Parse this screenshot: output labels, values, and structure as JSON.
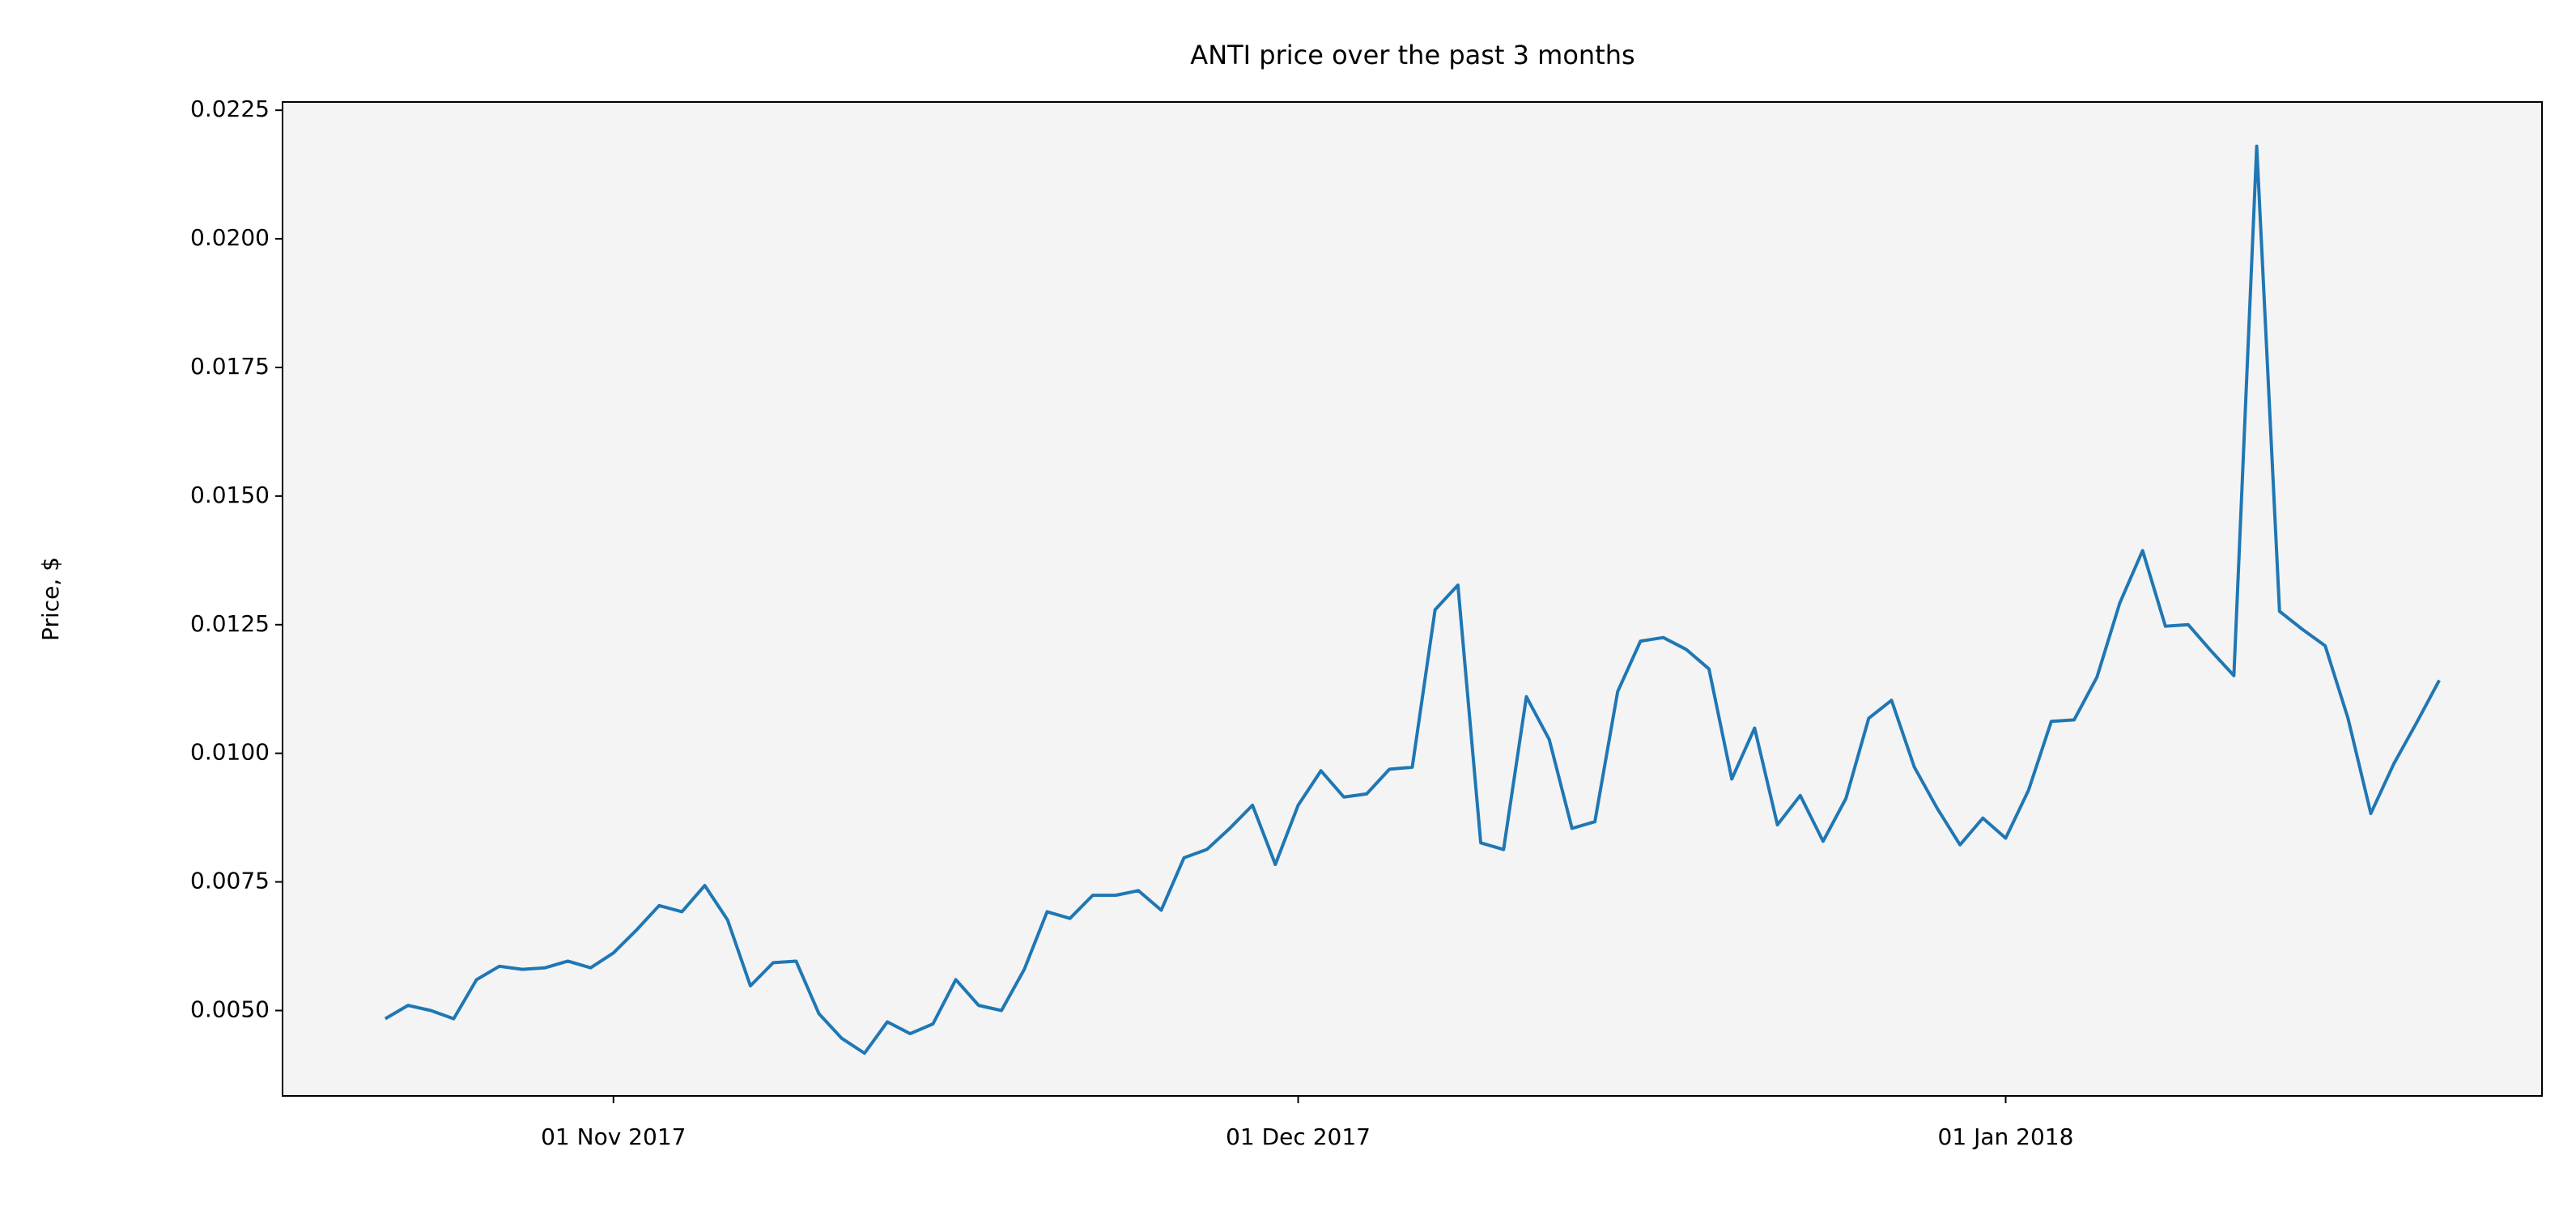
{
  "chart_data": {
    "type": "line",
    "title": "ANTI price over the past 3 months",
    "ylabel": "Price, $",
    "x": [
      "2017-10-22",
      "2017-10-23",
      "2017-10-24",
      "2017-10-25",
      "2017-10-26",
      "2017-10-27",
      "2017-10-28",
      "2017-10-29",
      "2017-10-30",
      "2017-10-31",
      "2017-11-01",
      "2017-11-02",
      "2017-11-03",
      "2017-11-04",
      "2017-11-05",
      "2017-11-06",
      "2017-11-07",
      "2017-11-08",
      "2017-11-09",
      "2017-11-10",
      "2017-11-11",
      "2017-11-12",
      "2017-11-13",
      "2017-11-14",
      "2017-11-15",
      "2017-11-16",
      "2017-11-17",
      "2017-11-18",
      "2017-11-19",
      "2017-11-20",
      "2017-11-21",
      "2017-11-22",
      "2017-11-23",
      "2017-11-24",
      "2017-11-25",
      "2017-11-26",
      "2017-11-27",
      "2017-11-28",
      "2017-11-29",
      "2017-11-30",
      "2017-12-01",
      "2017-12-02",
      "2017-12-03",
      "2017-12-04",
      "2017-12-05",
      "2017-12-06",
      "2017-12-07",
      "2017-12-08",
      "2017-12-09",
      "2017-12-10",
      "2017-12-11",
      "2017-12-12",
      "2017-12-13",
      "2017-12-14",
      "2017-12-15",
      "2017-12-16",
      "2017-12-17",
      "2017-12-18",
      "2017-12-19",
      "2017-12-20",
      "2017-12-21",
      "2017-12-22",
      "2017-12-23",
      "2017-12-24",
      "2017-12-25",
      "2017-12-26",
      "2017-12-27",
      "2017-12-28",
      "2017-12-29",
      "2017-12-30",
      "2017-12-31",
      "2018-01-01",
      "2018-01-02",
      "2018-01-03",
      "2018-01-04",
      "2018-01-05",
      "2018-01-06",
      "2018-01-07",
      "2018-01-08",
      "2018-01-09",
      "2018-01-10",
      "2018-01-11",
      "2018-01-12",
      "2018-01-13",
      "2018-01-14",
      "2018-01-15",
      "2018-01-16",
      "2018-01-17",
      "2018-01-18",
      "2018-01-19",
      "2018-01-20"
    ],
    "values": [
      0.00484,
      0.0051,
      0.005,
      0.00484,
      0.0056,
      0.00586,
      0.0058,
      0.00583,
      0.00596,
      0.00583,
      0.00612,
      0.00656,
      0.00704,
      0.00692,
      0.00743,
      0.00676,
      0.00548,
      0.00593,
      0.00596,
      0.00494,
      0.00446,
      0.00417,
      0.00478,
      0.00455,
      0.00474,
      0.0056,
      0.0051,
      0.005,
      0.0058,
      0.00692,
      0.00679,
      0.00724,
      0.00724,
      0.00733,
      0.00695,
      0.00797,
      0.00813,
      0.00854,
      0.00899,
      0.00784,
      0.00899,
      0.00966,
      0.00915,
      0.00921,
      0.00969,
      0.00973,
      0.01279,
      0.01327,
      0.00826,
      0.00813,
      0.0111,
      0.01027,
      0.00854,
      0.00867,
      0.0112,
      0.01218,
      0.01225,
      0.01202,
      0.01164,
      0.0095,
      0.01049,
      0.00861,
      0.00918,
      0.00829,
      0.00912,
      0.01068,
      0.01103,
      0.00973,
      0.00893,
      0.00822,
      0.00874,
      0.00835,
      0.00928,
      0.01062,
      0.01065,
      0.01148,
      0.01292,
      0.01394,
      0.01247,
      0.0125,
      0.01199,
      0.01151,
      0.0218,
      0.01276,
      0.01241,
      0.01209,
      0.01068,
      0.00883,
      0.00979,
      0.01059,
      0.01142
    ],
    "color": "#1f77b4",
    "xlim": [
      "2017-10-17T12:00:00Z",
      "2018-01-24T12:00:00Z"
    ],
    "xticks": [
      {
        "value": "2017-11-01",
        "label": "01 Nov 2017"
      },
      {
        "value": "2017-12-01",
        "label": "01 Dec 2017"
      },
      {
        "value": "2018-01-01",
        "label": "01 Jan 2018"
      }
    ],
    "ylim": [
      0.00334,
      0.02266
    ],
    "yticks": [
      {
        "value": 0.005,
        "label": "0.0050"
      },
      {
        "value": 0.0075,
        "label": "0.0075"
      },
      {
        "value": 0.01,
        "label": "0.0100"
      },
      {
        "value": 0.0125,
        "label": "0.0125"
      },
      {
        "value": 0.015,
        "label": "0.0150"
      },
      {
        "value": 0.0175,
        "label": "0.0175"
      },
      {
        "value": 0.02,
        "label": "0.0200"
      },
      {
        "value": 0.0225,
        "label": "0.0225"
      }
    ],
    "background": "#f4f4f4"
  }
}
